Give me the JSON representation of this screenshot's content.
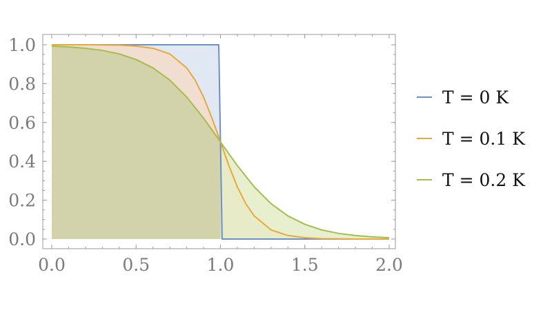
{
  "chart_data": {
    "type": "area",
    "xlim": [
      0.0,
      2.0
    ],
    "ylim": [
      0.0,
      1.0
    ],
    "x_ticks": [
      "0.0",
      "0.5",
      "1.0",
      "1.5",
      "2.0"
    ],
    "y_ticks": [
      "0.0",
      "0.2",
      "0.4",
      "0.6",
      "0.8",
      "1.0"
    ],
    "grid": false,
    "legend_position": "right",
    "series": [
      {
        "name": "T = 0 K",
        "color": "#6b8fc7",
        "fill": "#dbe4f1",
        "x": [
          0.0,
          0.1,
          0.2,
          0.3,
          0.4,
          0.5,
          0.6,
          0.7,
          0.8,
          0.9,
          0.99,
          1.0,
          1.01,
          1.1,
          1.2,
          1.3,
          1.4,
          1.5,
          1.6,
          1.7,
          1.8,
          1.9,
          2.0
        ],
        "y": [
          1.0,
          1.0,
          1.0,
          1.0,
          1.0,
          1.0,
          1.0,
          1.0,
          1.0,
          1.0,
          1.0,
          0.5,
          0.0,
          0.0,
          0.0,
          0.0,
          0.0,
          0.0,
          0.0,
          0.0,
          0.0,
          0.0,
          0.0
        ]
      },
      {
        "name": "T = 0.1 K",
        "color": "#e8a93a",
        "fill": "#f3dcc9",
        "x": [
          0.0,
          0.1,
          0.2,
          0.3,
          0.4,
          0.5,
          0.6,
          0.7,
          0.8,
          0.85,
          0.9,
          0.95,
          1.0,
          1.05,
          1.1,
          1.15,
          1.2,
          1.3,
          1.4,
          1.5,
          1.6,
          1.7,
          1.8,
          1.9,
          2.0
        ],
        "y": [
          1.0,
          1.0,
          1.0,
          0.999,
          0.998,
          0.993,
          0.982,
          0.953,
          0.881,
          0.818,
          0.731,
          0.622,
          0.5,
          0.378,
          0.269,
          0.182,
          0.119,
          0.047,
          0.018,
          0.007,
          0.002,
          0.001,
          0.0,
          0.0,
          0.0
        ]
      },
      {
        "name": "T = 0.2 K",
        "color": "#a3be4a",
        "fill": "#e4ecc7",
        "x": [
          0.0,
          0.1,
          0.2,
          0.3,
          0.4,
          0.5,
          0.6,
          0.7,
          0.8,
          0.9,
          1.0,
          1.1,
          1.2,
          1.3,
          1.4,
          1.5,
          1.6,
          1.7,
          1.8,
          1.9,
          2.0
        ],
        "y": [
          0.993,
          0.989,
          0.982,
          0.971,
          0.953,
          0.924,
          0.881,
          0.818,
          0.731,
          0.622,
          0.5,
          0.378,
          0.269,
          0.182,
          0.119,
          0.076,
          0.047,
          0.029,
          0.018,
          0.011,
          0.007
        ]
      }
    ]
  },
  "overlap_fill": "#d3d3ab",
  "axis_color": "#9a9a9a"
}
